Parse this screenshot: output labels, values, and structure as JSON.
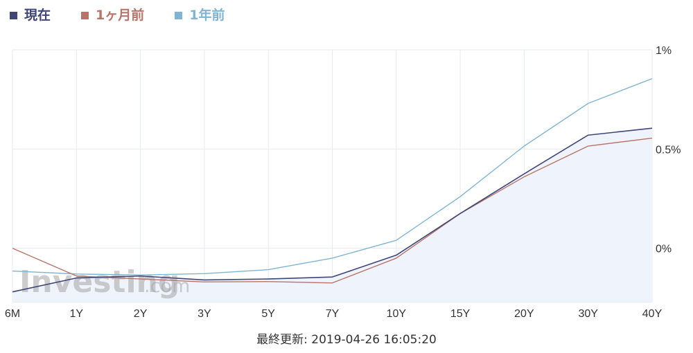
{
  "legend": [
    {
      "label": "現在",
      "color": "#3f4577"
    },
    {
      "label": "1ヶ月前",
      "color": "#b87468"
    },
    {
      "label": "1年前",
      "color": "#7fb5d3"
    }
  ],
  "watermark": {
    "brand": "Investing",
    "suffix": ".com"
  },
  "footer": {
    "last_updated_label": "最終更新:",
    "last_updated_value": "2019-04-26 16:05:20"
  },
  "chart_data": {
    "type": "line",
    "categories": [
      "6M",
      "1Y",
      "2Y",
      "3Y",
      "5Y",
      "7Y",
      "10Y",
      "15Y",
      "20Y",
      "30Y",
      "40Y"
    ],
    "y_tick_labels": [
      "1%",
      "0.5%",
      "0%"
    ],
    "y_ticks": [
      1,
      0.5,
      0
    ],
    "ylim": [
      -0.27,
      1
    ],
    "y_axis_position": "right",
    "grid": true,
    "legend_position": "top-left",
    "series": [
      {
        "name": "現在",
        "color": "#3f4577",
        "fill": "#eef3fc",
        "values": [
          -0.22,
          -0.15,
          -0.14,
          -0.16,
          -0.155,
          -0.145,
          -0.035,
          0.175,
          0.375,
          0.57,
          0.605
        ]
      },
      {
        "name": "1ヶ月前",
        "color": "#b87468",
        "values": [
          0.0,
          -0.14,
          -0.155,
          -0.17,
          -0.168,
          -0.175,
          -0.05,
          0.175,
          0.36,
          0.515,
          0.555
        ]
      },
      {
        "name": "1年前",
        "color": "#7fb5d3",
        "values": [
          -0.115,
          -0.13,
          -0.135,
          -0.128,
          -0.108,
          -0.05,
          0.04,
          0.26,
          0.515,
          0.73,
          0.855
        ]
      }
    ]
  }
}
